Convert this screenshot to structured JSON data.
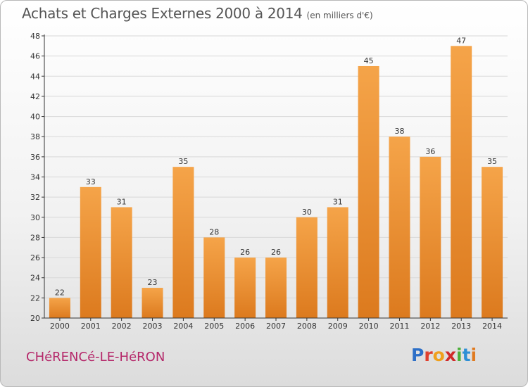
{
  "header": {
    "title": "Achats et Charges Externes 2000 à 2014",
    "subtitle": "(en milliers d'€)"
  },
  "footer": {
    "commune": "CHéRENCé-LE-HéRON",
    "logo_letters": [
      "P",
      "r",
      "o",
      "x",
      "i",
      "t",
      "i"
    ]
  },
  "colors": {
    "bar_top": "#f5a449",
    "bar_bottom": "#dc7a1e",
    "grid": "#d8d8d8",
    "axis": "#333333",
    "commune_text": "#b5286a"
  },
  "chart_data": {
    "type": "bar",
    "title": "Achats et Charges Externes 2000 à 2014",
    "subtitle": "(en milliers d'€)",
    "xlabel": "",
    "ylabel": "",
    "categories": [
      "2000",
      "2001",
      "2002",
      "2003",
      "2004",
      "2005",
      "2006",
      "2007",
      "2008",
      "2009",
      "2010",
      "2011",
      "2012",
      "2013",
      "2014"
    ],
    "values": [
      22,
      33,
      31,
      23,
      35,
      28,
      26,
      26,
      30,
      31,
      45,
      38,
      36,
      47,
      35
    ],
    "ylim": [
      20,
      48
    ],
    "yticks": [
      20,
      22,
      24,
      26,
      28,
      30,
      32,
      34,
      36,
      38,
      40,
      42,
      44,
      46,
      48
    ],
    "grid": true,
    "data_labels": true
  }
}
